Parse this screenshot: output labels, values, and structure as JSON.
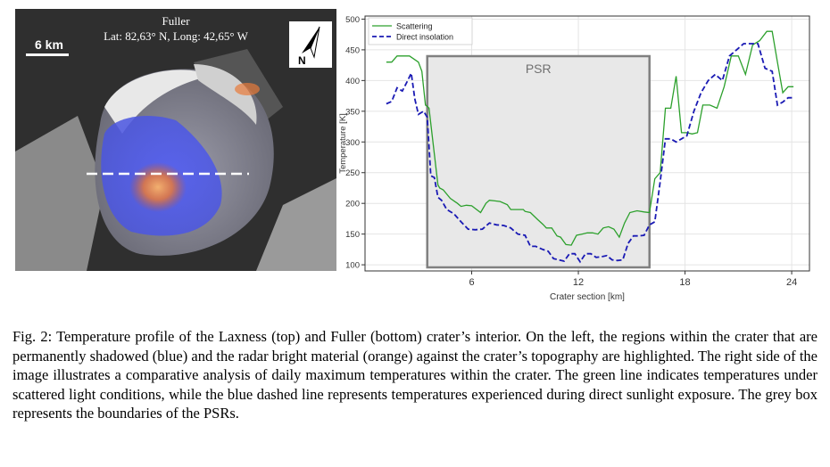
{
  "left_panel": {
    "title": "Fuller",
    "coordinates": "Lat: 82,63° N, Long: 42,65° W",
    "scale_label": "6 km",
    "north_label": "N",
    "colors": {
      "psr": "#4a55e0",
      "radar_bright": "#e8702a"
    }
  },
  "chart_data": {
    "type": "line",
    "title": "",
    "xlabel": "Crater section [km]",
    "ylabel": "Temperature [K]",
    "xlim": [
      0,
      25
    ],
    "ylim": [
      90,
      505
    ],
    "xticks": [
      6,
      12,
      18,
      24
    ],
    "yticks": [
      100,
      150,
      200,
      250,
      300,
      350,
      400,
      450,
      500
    ],
    "grid": true,
    "legend_position": "top-left",
    "psr_box": {
      "label": "PSR",
      "x_range": [
        3.5,
        16
      ],
      "color": "#e8e8e8"
    },
    "series": [
      {
        "name": "Scattering",
        "color": "#2ca02c",
        "style": "solid",
        "x": [
          1.2,
          1.5,
          1.8,
          2.0,
          2.5,
          3.0,
          3.2,
          3.4,
          3.5,
          3.6,
          3.9,
          4.1,
          4.2,
          4.4,
          4.8,
          5.2,
          5.4,
          5.7,
          6.0,
          6.5,
          6.8,
          7.0,
          7.3,
          7.6,
          8.0,
          8.2,
          8.5,
          8.9,
          9.0,
          9.3,
          9.7,
          10.0,
          10.2,
          10.5,
          10.8,
          11.0,
          11.3,
          11.6,
          11.9,
          12.2,
          12.5,
          12.8,
          13.1,
          13.4,
          13.7,
          14.0,
          14.3,
          14.6,
          14.9,
          15.3,
          15.7,
          16.0,
          16.3,
          16.6,
          16.9,
          17.2,
          17.5,
          17.8,
          18.1,
          18.4,
          18.7,
          19.0,
          19.4,
          19.8,
          20.2,
          20.6,
          21.0,
          21.4,
          21.8,
          22.2,
          22.6,
          22.9,
          23.2,
          23.5,
          23.8,
          24.1
        ],
        "values": [
          430,
          430,
          440,
          440,
          440,
          430,
          415,
          360,
          358,
          355,
          280,
          230,
          225,
          222,
          208,
          200,
          195,
          197,
          196,
          185,
          200,
          205,
          204,
          203,
          198,
          190,
          190,
          190,
          187,
          185,
          174,
          166,
          160,
          160,
          147,
          145,
          133,
          132,
          148,
          150,
          152,
          152,
          150,
          160,
          162,
          158,
          145,
          168,
          185,
          188,
          186,
          185,
          240,
          250,
          355,
          355,
          407,
          315,
          315,
          313,
          315,
          360,
          360,
          355,
          390,
          440,
          440,
          410,
          458,
          465,
          480,
          480,
          430,
          380,
          390,
          390
        ]
      },
      {
        "name": "Direct insolation",
        "color": "#1a1ab4",
        "style": "dashed",
        "x": [
          1.2,
          1.5,
          1.8,
          2.1,
          2.4,
          2.6,
          2.8,
          3.0,
          3.3,
          3.5,
          3.7,
          3.9,
          4.1,
          4.3,
          4.6,
          5.0,
          5.4,
          5.8,
          6.2,
          6.6,
          7.0,
          7.4,
          7.8,
          8.2,
          8.6,
          9.0,
          9.3,
          9.6,
          10.0,
          10.3,
          10.6,
          10.9,
          11.2,
          11.5,
          11.8,
          12.1,
          12.4,
          12.7,
          13.0,
          13.3,
          13.6,
          13.9,
          14.2,
          14.5,
          14.8,
          15.1,
          15.4,
          15.7,
          16.0,
          16.3,
          16.6,
          16.9,
          17.2,
          17.5,
          17.8,
          18.1,
          18.5,
          18.9,
          19.3,
          19.7,
          20.1,
          20.5,
          20.9,
          21.3,
          21.7,
          22.1,
          22.5,
          22.9,
          23.2,
          23.5,
          23.8,
          24.1
        ],
        "values": [
          362,
          366,
          388,
          383,
          400,
          412,
          370,
          345,
          350,
          340,
          245,
          242,
          210,
          205,
          190,
          183,
          170,
          158,
          157,
          158,
          168,
          165,
          164,
          160,
          150,
          148,
          130,
          130,
          125,
          122,
          110,
          108,
          106,
          118,
          118,
          105,
          118,
          118,
          112,
          113,
          115,
          108,
          107,
          108,
          135,
          147,
          147,
          148,
          165,
          170,
          235,
          305,
          305,
          300,
          305,
          310,
          350,
          380,
          400,
          410,
          400,
          440,
          450,
          460,
          460,
          460,
          420,
          415,
          360,
          365,
          372,
          372
        ]
      }
    ]
  },
  "caption": "Fig. 2: Temperature profile of the Laxness (top) and Fuller (bottom) crater’s interior. On the left, the regions within the crater that are permanently shadowed (blue) and the radar bright material (orange) against the crater’s topography are highlighted. The right side of the image illustrates a comparative analysis of daily maximum temperatures within the crater. The green line indicates temperatures under scattered light conditions, while the blue dashed line represents temperatures experienced during direct sunlight exposure. The grey box represents the boundaries of the PSRs."
}
